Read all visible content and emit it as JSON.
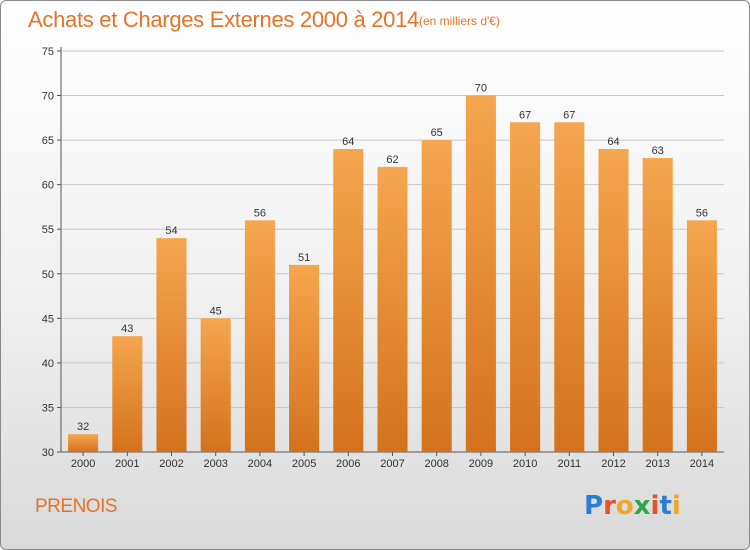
{
  "title": "Achats et Charges Externes 2000 à 2014",
  "title_unit": "(en milliers d'€)",
  "location": "PRENOIS",
  "logo": {
    "text": "Proxiti",
    "letters": [
      "P",
      "r",
      "o",
      "x",
      "i",
      "t",
      "i"
    ],
    "colors": [
      "#2a7fd0",
      "#e8512c",
      "#f2a62a",
      "#2aa84a",
      "#e8512c",
      "#2a7fd0",
      "#f2a62a"
    ]
  },
  "colors": {
    "bar_top": "#f5a64e",
    "bar_bottom": "#d4721c",
    "title": "#e4742a",
    "grid": "#c8c8c8"
  },
  "chart_data": {
    "type": "bar",
    "categories": [
      "2000",
      "2001",
      "2002",
      "2003",
      "2004",
      "2005",
      "2006",
      "2007",
      "2008",
      "2009",
      "2010",
      "2011",
      "2012",
      "2013",
      "2014"
    ],
    "values": [
      32,
      43,
      54,
      45,
      56,
      51,
      64,
      62,
      65,
      70,
      67,
      67,
      64,
      63,
      56
    ],
    "ylim": [
      30,
      75
    ],
    "yticks": [
      30,
      35,
      40,
      45,
      50,
      55,
      60,
      65,
      70,
      75
    ],
    "grid": "horizontal",
    "legend": "none"
  }
}
